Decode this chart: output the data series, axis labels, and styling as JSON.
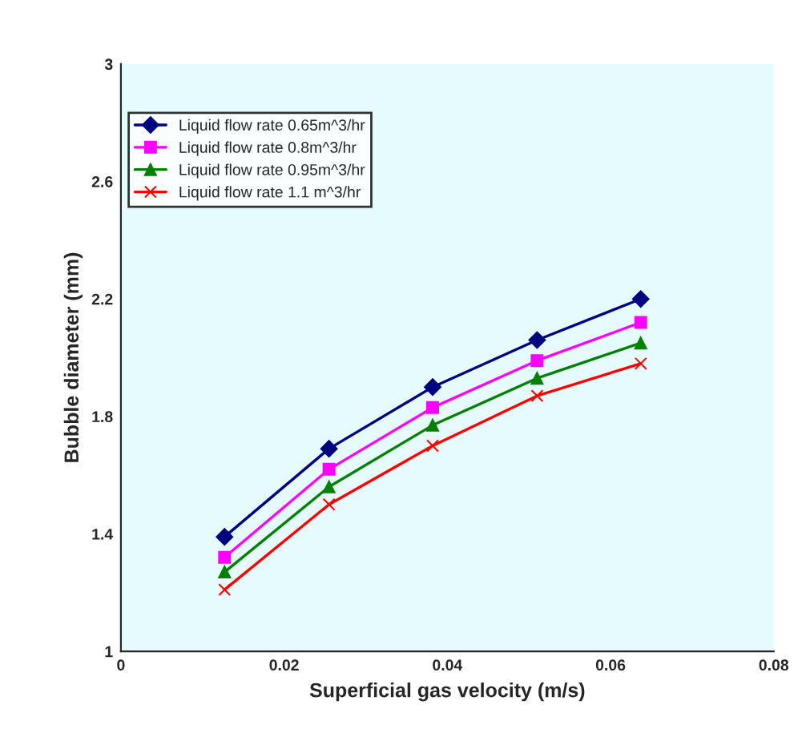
{
  "chart_data": {
    "type": "line",
    "xlabel": "Superficial gas velocity (m/s)",
    "ylabel": "Bubble diameter (mm)",
    "x": [
      0.0127,
      0.0255,
      0.0382,
      0.051,
      0.0637
    ],
    "series": [
      {
        "name": "Liquid flow rate 0.65m^3/hr",
        "color": "#000080",
        "marker": "diamond",
        "values": [
          1.39,
          1.69,
          1.9,
          2.06,
          2.2
        ]
      },
      {
        "name": "Liquid flow rate 0.8m^3/hr",
        "color": "#ff00ff",
        "marker": "square",
        "values": [
          1.32,
          1.62,
          1.83,
          1.99,
          2.12
        ]
      },
      {
        "name": "Liquid flow rate 0.95m^3/hr",
        "color": "#008000",
        "marker": "triangle",
        "values": [
          1.27,
          1.56,
          1.77,
          1.93,
          2.05
        ]
      },
      {
        "name": "Liquid flow rate 1.1 m^3/hr",
        "color": "#ff0000",
        "marker": "cross",
        "values": [
          1.21,
          1.5,
          1.7,
          1.87,
          1.98
        ]
      }
    ],
    "xlim": [
      0,
      0.08
    ],
    "xticks": [
      0,
      0.02,
      0.04,
      0.06,
      0.08
    ],
    "ylim": [
      1,
      3
    ],
    "yticks": [
      1,
      1.4,
      1.8,
      2.2,
      2.6,
      3
    ],
    "grid": false,
    "legend": "top left",
    "line_style": "solid"
  }
}
